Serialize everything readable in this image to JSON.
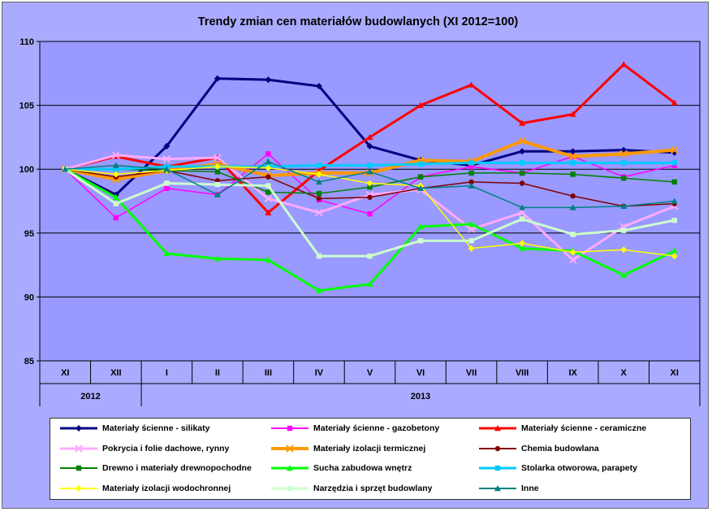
{
  "chart_data": {
    "type": "line",
    "title": "Trendy zmian cen materiałów budowlanych (XI 2012=100)",
    "xlabel": "",
    "ylabel": "",
    "ylim": [
      85,
      110
    ],
    "yticks": [
      85,
      90,
      95,
      100,
      105,
      110
    ],
    "grid": true,
    "legend_position": "bottom",
    "categories": [
      "XI",
      "XII",
      "I",
      "II",
      "III",
      "IV",
      "V",
      "VI",
      "VII",
      "VIII",
      "IX",
      "X",
      "XI"
    ],
    "year_groups": [
      {
        "label": "2012",
        "span": 2
      },
      {
        "label": "2013",
        "span": 11
      }
    ],
    "series": [
      {
        "name": "Materiały ścienne - silikaty",
        "color": "#000080",
        "marker": "diamond",
        "width": 3,
        "values": [
          100,
          98.0,
          101.8,
          107.1,
          107.0,
          106.5,
          101.8,
          100.7,
          100.3,
          101.4,
          101.4,
          101.5,
          101.3
        ]
      },
      {
        "name": "Materiały ścienne - gazobetony",
        "color": "#ff00ff",
        "marker": "square",
        "width": 1.5,
        "values": [
          100,
          96.2,
          98.5,
          98.0,
          101.2,
          97.6,
          96.5,
          99.4,
          100.2,
          99.7,
          101.0,
          99.4,
          100.3
        ]
      },
      {
        "name": "Materiały ścienne - ceramiczne",
        "color": "#ff0000",
        "marker": "triangle",
        "width": 3,
        "values": [
          100,
          101.0,
          100.2,
          100.9,
          96.6,
          99.9,
          102.5,
          105.0,
          106.6,
          103.6,
          104.3,
          108.2,
          105.2
        ]
      },
      {
        "name": "Pokrycia i folie dachowe, rynny",
        "color": "#ffaaff",
        "marker": "x",
        "width": 3,
        "values": [
          100,
          101.1,
          100.8,
          100.9,
          97.7,
          96.6,
          98.0,
          98.4,
          95.3,
          96.6,
          92.9,
          95.5,
          97.1
        ]
      },
      {
        "name": "Materiały izolacji termicznej",
        "color": "#ff9900",
        "marker": "x",
        "width": 4,
        "values": [
          100,
          99.2,
          99.9,
          100.4,
          99.5,
          99.7,
          99.7,
          100.7,
          100.6,
          102.2,
          101.0,
          101.2,
          101.5
        ]
      },
      {
        "name": "Chemia budowlana",
        "color": "#800000",
        "marker": "circle",
        "width": 1.5,
        "values": [
          100,
          99.4,
          99.9,
          99.1,
          99.4,
          97.7,
          97.8,
          98.5,
          99.0,
          98.9,
          97.9,
          97.1,
          97.3
        ]
      },
      {
        "name": "Drewno i materiały drewnopochodne",
        "color": "#008000",
        "marker": "square",
        "width": 1.5,
        "values": [
          100,
          100.0,
          99.9,
          99.8,
          98.2,
          98.1,
          98.6,
          99.4,
          99.7,
          99.7,
          99.6,
          99.3,
          99.0
        ]
      },
      {
        "name": "Sucha zabudowa wnętrz",
        "color": "#00ff00",
        "marker": "triangle",
        "width": 3,
        "values": [
          100,
          97.8,
          93.4,
          93.0,
          92.9,
          90.5,
          91.0,
          95.5,
          95.7,
          93.8,
          93.6,
          91.7,
          93.6
        ]
      },
      {
        "name": "Stolarka otworowa, parapety",
        "color": "#00ccff",
        "marker": "square",
        "width": 3,
        "values": [
          100,
          100.0,
          100.2,
          100.2,
          100.2,
          100.3,
          100.3,
          100.4,
          100.5,
          100.5,
          100.5,
          100.5,
          100.5
        ]
      },
      {
        "name": "Materiały izolacji wodochronnej",
        "color": "#ffff00",
        "marker": "diamond",
        "width": 1.5,
        "values": [
          100,
          99.6,
          99.9,
          100.2,
          100.1,
          99.6,
          98.9,
          98.7,
          93.8,
          94.2,
          93.5,
          93.7,
          93.2
        ]
      },
      {
        "name": "Narzędzia i sprzęt budowlany",
        "color": "#ccffcc",
        "marker": "square",
        "width": 3,
        "values": [
          100,
          97.3,
          98.9,
          98.8,
          98.7,
          93.2,
          93.2,
          94.4,
          94.4,
          96.1,
          94.9,
          95.2,
          96.0
        ]
      },
      {
        "name": "Inne",
        "color": "#008080",
        "marker": "triangle",
        "width": 1.5,
        "values": [
          100,
          100.3,
          100.0,
          98.0,
          100.6,
          99.0,
          99.8,
          98.5,
          98.7,
          97.0,
          97.0,
          97.1,
          97.5
        ]
      }
    ]
  }
}
